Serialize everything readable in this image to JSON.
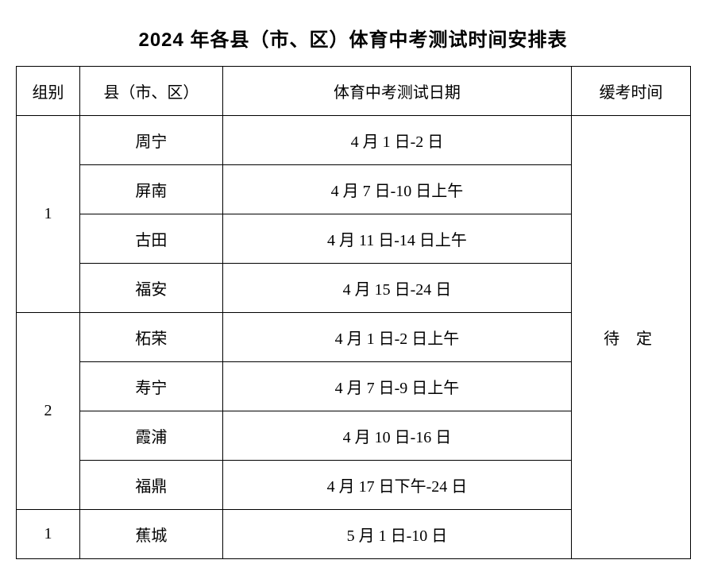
{
  "title": "2024 年各县（市、区）体育中考测试时间安排表",
  "headers": {
    "group": "组别",
    "county": "县（市、区）",
    "test_date": "体育中考测试日期",
    "makeup_time": "缓考时间"
  },
  "groups": [
    {
      "group_id": "1",
      "rows": [
        {
          "county": "周宁",
          "date": "4 月 1 日-2 日"
        },
        {
          "county": "屏南",
          "date": "4 月 7 日-10 日上午"
        },
        {
          "county": "古田",
          "date": "4 月 11 日-14 日上午"
        },
        {
          "county": "福安",
          "date": "4 月 15 日-24 日"
        }
      ]
    },
    {
      "group_id": "2",
      "rows": [
        {
          "county": "柘荣",
          "date": "4 月 1 日-2 日上午"
        },
        {
          "county": "寿宁",
          "date": "4 月 7 日-9 日上午"
        },
        {
          "county": "霞浦",
          "date": "4 月 10 日-16 日"
        },
        {
          "county": "福鼎",
          "date": "4 月 17 日下午-24 日"
        }
      ]
    },
    {
      "group_id": "1",
      "rows": [
        {
          "county": "蕉城",
          "date": "5 月 1 日-10 日"
        }
      ]
    }
  ],
  "makeup_value": "待 定",
  "styling": {
    "title_fontsize": 24,
    "cell_fontsize": 20,
    "border_color": "#000000",
    "border_width": 1.5,
    "background_color": "#ffffff",
    "text_color": "#000000",
    "column_widths": {
      "group": 80,
      "county": 180,
      "date": 440,
      "makeup": 150
    },
    "total_rows_in_makeup_span": 9
  }
}
